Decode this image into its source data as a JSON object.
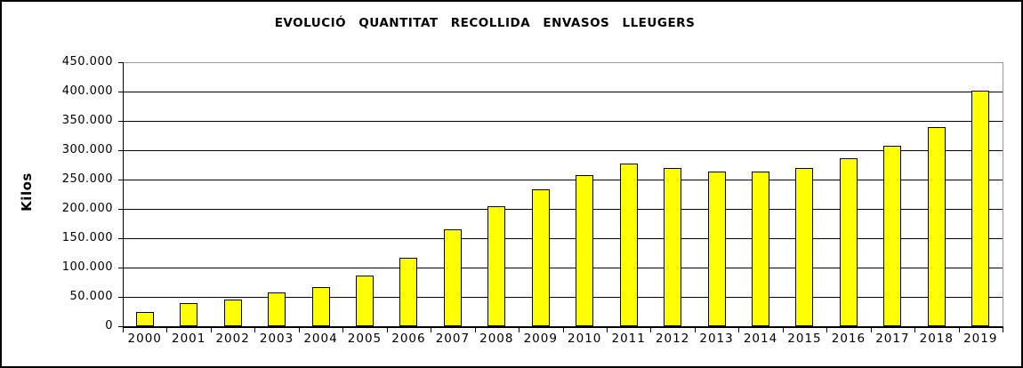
{
  "chart_data": {
    "type": "bar",
    "title": "EVOLUCIÓ QUANTITAT RECOLLIDA ENVASOS LLEUGERS",
    "xlabel": "",
    "ylabel": "Kilos",
    "categories": [
      "2000",
      "2001",
      "2002",
      "2003",
      "2004",
      "2005",
      "2006",
      "2007",
      "2008",
      "2009",
      "2010",
      "2011",
      "2012",
      "2013",
      "2014",
      "2015",
      "2016",
      "2017",
      "2018",
      "2019"
    ],
    "values": [
      24000,
      40000,
      45000,
      57000,
      67000,
      87000,
      116000,
      165000,
      204000,
      234000,
      257000,
      278000,
      269000,
      263000,
      263000,
      269000,
      287000,
      308000,
      340000,
      402000
    ],
    "ylim": [
      0,
      450000
    ],
    "ytick_step": 50000,
    "ytick_labels": [
      "0",
      "50.000",
      "100.000",
      "150.000",
      "200.000",
      "250.000",
      "300.000",
      "350.000",
      "400.000",
      "450.000"
    ],
    "grid": "horizontal",
    "legend": "none"
  },
  "colors": {
    "bar_fill": "#FFFF00",
    "bar_border": "#000000",
    "gridline": "#000000",
    "plot_border_gray": "#999999",
    "axis": "#000000",
    "text": "#000000",
    "background": "#FFFFFF",
    "frame_border": "#000000"
  }
}
